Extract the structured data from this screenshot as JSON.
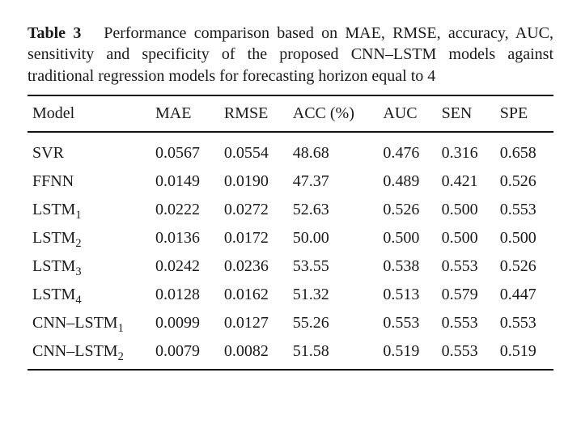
{
  "caption": {
    "label": "Table 3",
    "text": "Performance comparison based on MAE, RMSE, accuracy, AUC, sensitivity and specificity of the proposed CNN–LSTM models against traditional regression models for forecasting horizon equal to 4"
  },
  "table": {
    "type": "table",
    "background_color": "#ffffff",
    "text_color": "#1a1a1a",
    "rule_color": "#111111",
    "font_family": "Times New Roman",
    "header_fontsize_pt": 15,
    "body_fontsize_pt": 15,
    "columns": [
      {
        "key": "model",
        "label": "Model",
        "align": "left"
      },
      {
        "key": "mae",
        "label": "MAE",
        "align": "left"
      },
      {
        "key": "rmse",
        "label": "RMSE",
        "align": "left"
      },
      {
        "key": "acc",
        "label": "ACC (%)",
        "align": "left"
      },
      {
        "key": "auc",
        "label": "AUC",
        "align": "left"
      },
      {
        "key": "sen",
        "label": "SEN",
        "align": "left"
      },
      {
        "key": "spe",
        "label": "SPE",
        "align": "left"
      }
    ],
    "rows": [
      {
        "model_base": "SVR",
        "model_sub": "",
        "mae": "0.0567",
        "rmse": "0.0554",
        "acc": "48.68",
        "auc": "0.476",
        "sen": "0.316",
        "spe": "0.658"
      },
      {
        "model_base": "FFNN",
        "model_sub": "",
        "mae": "0.0149",
        "rmse": "0.0190",
        "acc": "47.37",
        "auc": "0.489",
        "sen": "0.421",
        "spe": "0.526"
      },
      {
        "model_base": "LSTM",
        "model_sub": "1",
        "mae": "0.0222",
        "rmse": "0.0272",
        "acc": "52.63",
        "auc": "0.526",
        "sen": "0.500",
        "spe": "0.553"
      },
      {
        "model_base": "LSTM",
        "model_sub": "2",
        "mae": "0.0136",
        "rmse": "0.0172",
        "acc": "50.00",
        "auc": "0.500",
        "sen": "0.500",
        "spe": "0.500"
      },
      {
        "model_base": "LSTM",
        "model_sub": "3",
        "mae": "0.0242",
        "rmse": "0.0236",
        "acc": "53.55",
        "auc": "0.538",
        "sen": "0.553",
        "spe": "0.526"
      },
      {
        "model_base": "LSTM",
        "model_sub": "4",
        "mae": "0.0128",
        "rmse": "0.0162",
        "acc": "51.32",
        "auc": "0.513",
        "sen": "0.579",
        "spe": "0.447"
      },
      {
        "model_base": "CNN–LSTM",
        "model_sub": "1",
        "mae": "0.0099",
        "rmse": "0.0127",
        "acc": "55.26",
        "auc": "0.553",
        "sen": "0.553",
        "spe": "0.553"
      },
      {
        "model_base": "CNN–LSTM",
        "model_sub": "2",
        "mae": "0.0079",
        "rmse": "0.0082",
        "acc": "51.58",
        "auc": "0.519",
        "sen": "0.553",
        "spe": "0.519"
      }
    ]
  }
}
